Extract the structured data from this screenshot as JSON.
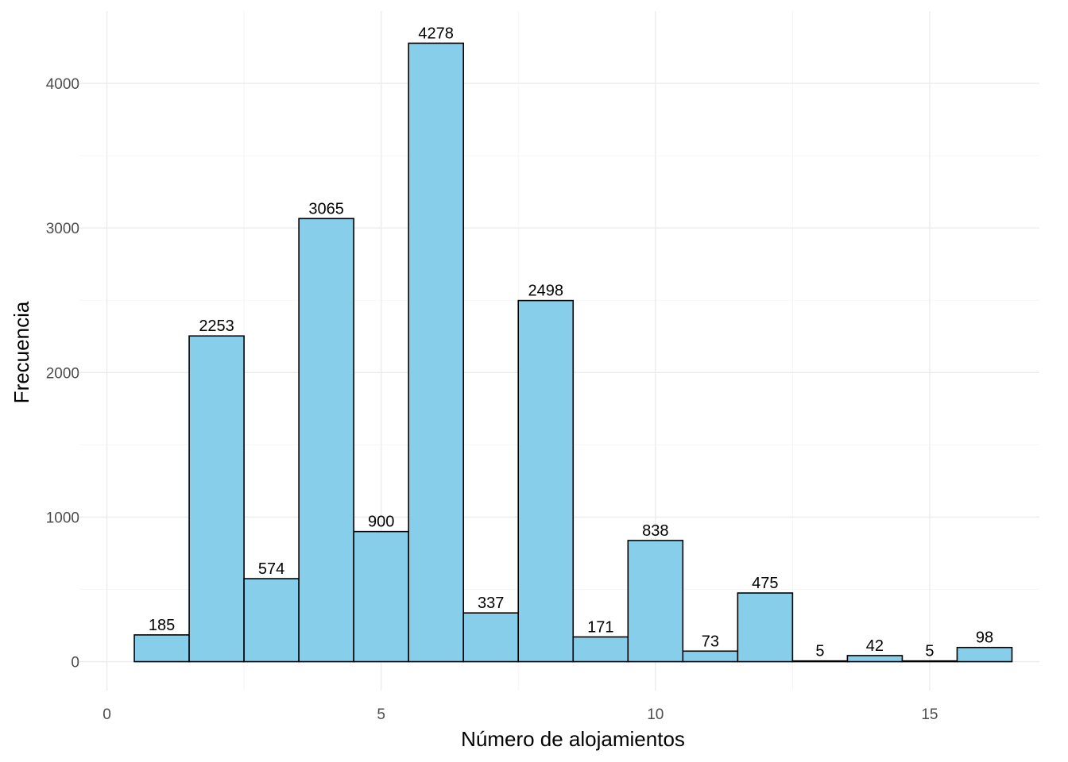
{
  "chart_data": {
    "type": "bar",
    "title": "",
    "xlabel": "Número de alojamientos",
    "ylabel": "Frecuencia",
    "x": [
      1,
      2,
      3,
      4,
      5,
      6,
      7,
      8,
      9,
      10,
      11,
      12,
      13,
      14,
      15,
      16
    ],
    "values": [
      185,
      2253,
      574,
      3065,
      900,
      4278,
      337,
      2498,
      171,
      838,
      73,
      475,
      5,
      42,
      5,
      98
    ],
    "value_labels": [
      "185",
      "2253",
      "574",
      "3065",
      "900",
      "4278",
      "337",
      "2498",
      "171",
      "838",
      "73",
      "475",
      "5",
      "42",
      "5",
      "98"
    ],
    "bin_width": 1,
    "xlim": [
      -0.5,
      17
    ],
    "ylim": [
      -200,
      4500
    ],
    "x_ticks": [
      0,
      5,
      10,
      15
    ],
    "x_tick_labels": [
      "0",
      "5",
      "10",
      "15"
    ],
    "y_ticks": [
      0,
      1000,
      2000,
      3000,
      4000
    ],
    "y_tick_labels": [
      "0",
      "1000",
      "2000",
      "3000",
      "4000"
    ],
    "bar_color": "#87ceeb",
    "bar_border_color": "#000000",
    "grid": true,
    "legend": "none"
  }
}
